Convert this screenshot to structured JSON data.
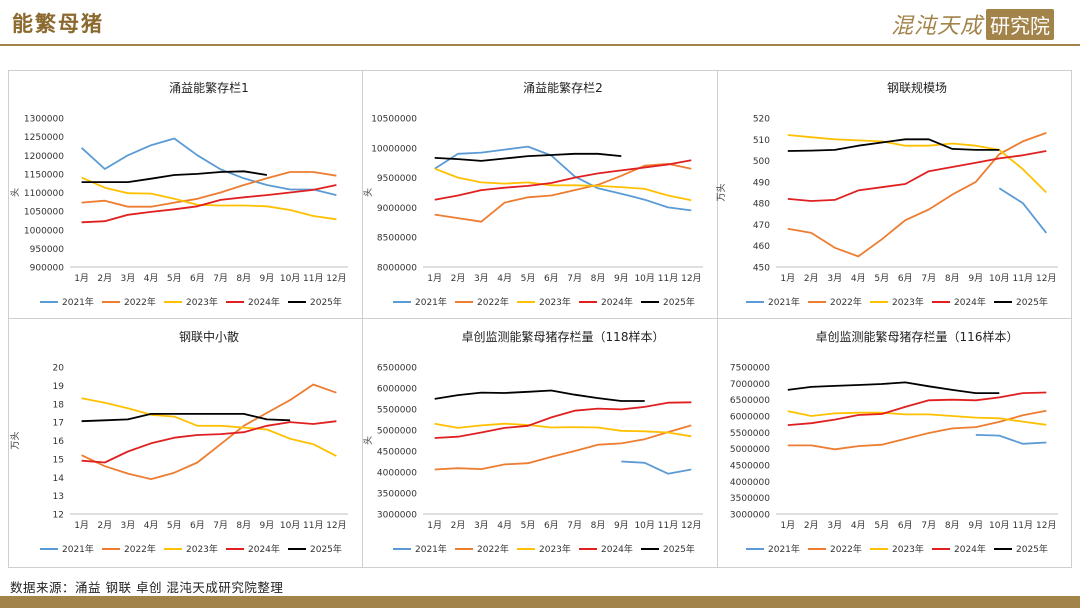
{
  "page": {
    "title": "能繁母猪",
    "brand_left": "混沌天成",
    "brand_right": "研究院",
    "source_note": "数据来源：涌益 钢联 卓创 混沌天成研究院整理"
  },
  "series_colors": {
    "2021年": "#5b9bd5",
    "2022年": "#ed7d31",
    "2023年": "#ffc000",
    "2024年": "#e02020",
    "2025年": "#000000"
  },
  "chart_data": [
    {
      "type": "line",
      "title": "涌益能繁存栏1",
      "ylabel": "头",
      "categories": [
        "1月",
        "2月",
        "3月",
        "4月",
        "5月",
        "6月",
        "7月",
        "8月",
        "9月",
        "10月",
        "11月",
        "12月"
      ],
      "ylim": [
        900000,
        1300000
      ],
      "yticks": [
        "900000",
        "950000",
        "1000000",
        "1050000",
        "1100000",
        "1150000",
        "1200000",
        "1250000",
        "1300000"
      ],
      "series": [
        {
          "name": "2021年",
          "values": [
            1220000,
            1163000,
            1200000,
            1227000,
            1245000,
            1200000,
            1162000,
            1138000,
            1120000,
            1108000,
            1108000,
            1093000
          ]
        },
        {
          "name": "2022年",
          "values": [
            1073000,
            1078000,
            1062000,
            1062000,
            1073000,
            1083000,
            1100000,
            1120000,
            1138000,
            1155000,
            1155000,
            1145000
          ]
        },
        {
          "name": "2023年",
          "values": [
            1140000,
            1113000,
            1098000,
            1097000,
            1083000,
            1067000,
            1065000,
            1065000,
            1063000,
            1053000,
            1037000,
            1028000
          ]
        },
        {
          "name": "2024年",
          "values": [
            1020000,
            1023000,
            1040000,
            1048000,
            1055000,
            1063000,
            1080000,
            1087000,
            1093000,
            1100000,
            1107000,
            1120000
          ]
        },
        {
          "name": "2025年",
          "values": [
            1128000,
            1128000,
            1128000,
            1137000,
            1147000,
            1150000,
            1155000,
            1157000,
            1147000,
            null,
            null,
            null
          ]
        }
      ]
    },
    {
      "type": "line",
      "title": "涌益能繁存栏2",
      "ylabel": "头",
      "categories": [
        "1月",
        "2月",
        "3月",
        "4月",
        "5月",
        "6月",
        "7月",
        "8月",
        "9月",
        "10月",
        "11月",
        "12月"
      ],
      "ylim": [
        8000000,
        10500000
      ],
      "yticks": [
        "8000000",
        "8500000",
        "9000000",
        "9500000",
        "10000000",
        "10500000"
      ],
      "series": [
        {
          "name": "2021年",
          "values": [
            9650000,
            9900000,
            9920000,
            9970000,
            10020000,
            9870000,
            9520000,
            9320000,
            9230000,
            9130000,
            9000000,
            8950000
          ]
        },
        {
          "name": "2022年",
          "values": [
            8880000,
            8820000,
            8760000,
            9080000,
            9170000,
            9200000,
            9290000,
            9380000,
            9530000,
            9700000,
            9730000,
            9650000
          ]
        },
        {
          "name": "2023年",
          "values": [
            9650000,
            9500000,
            9420000,
            9400000,
            9420000,
            9370000,
            9370000,
            9360000,
            9340000,
            9310000,
            9200000,
            9120000
          ]
        },
        {
          "name": "2024年",
          "values": [
            9130000,
            9200000,
            9290000,
            9330000,
            9360000,
            9410000,
            9500000,
            9570000,
            9620000,
            9670000,
            9720000,
            9790000
          ]
        },
        {
          "name": "2025年",
          "values": [
            9830000,
            9810000,
            9780000,
            9820000,
            9860000,
            9880000,
            9900000,
            9900000,
            9860000,
            null,
            null,
            null
          ]
        }
      ]
    },
    {
      "type": "line",
      "title": "钢联规模场",
      "ylabel": "万头",
      "categories": [
        "1月",
        "2月",
        "3月",
        "4月",
        "5月",
        "6月",
        "7月",
        "8月",
        "9月",
        "10月",
        "11月",
        "12月"
      ],
      "ylim": [
        450,
        520
      ],
      "yticks": [
        "450",
        "460",
        "470",
        "480",
        "490",
        "500",
        "510",
        "520"
      ],
      "series": [
        {
          "name": "2021年",
          "values": [
            null,
            null,
            null,
            null,
            null,
            null,
            null,
            null,
            null,
            487,
            480,
            466
          ]
        },
        {
          "name": "2022年",
          "values": [
            468,
            466,
            459,
            455,
            463,
            472,
            477,
            484,
            490,
            503,
            509,
            513
          ]
        },
        {
          "name": "2023年",
          "values": [
            512,
            511,
            510,
            509.5,
            509,
            507,
            507,
            508,
            507,
            505,
            496,
            485
          ]
        },
        {
          "name": "2024年",
          "values": [
            482,
            481,
            481.5,
            486,
            487.5,
            489,
            495,
            497,
            499,
            501,
            502.5,
            504.5
          ]
        },
        {
          "name": "2025年",
          "values": [
            504.5,
            504.7,
            505,
            507,
            508.5,
            510,
            510,
            505.5,
            505,
            505,
            null,
            null
          ]
        }
      ]
    },
    {
      "type": "line",
      "title": "钢联中小散",
      "ylabel": "万头",
      "categories": [
        "1月",
        "2月",
        "3月",
        "4月",
        "5月",
        "6月",
        "7月",
        "8月",
        "9月",
        "10月",
        "11月",
        "12月"
      ],
      "ylim": [
        12,
        20
      ],
      "yticks": [
        "12",
        "13",
        "14",
        "15",
        "16",
        "17",
        "18",
        "19",
        "20"
      ],
      "series": [
        {
          "name": "2021年",
          "values": [
            null,
            null,
            null,
            null,
            null,
            null,
            null,
            null,
            null,
            null,
            null,
            null
          ]
        },
        {
          "name": "2022年",
          "values": [
            15.2,
            14.6,
            14.2,
            13.9,
            14.25,
            14.8,
            15.8,
            16.8,
            17.5,
            18.2,
            19.05,
            18.6
          ]
        },
        {
          "name": "2023年",
          "values": [
            18.3,
            18.05,
            17.75,
            17.4,
            17.3,
            16.8,
            16.8,
            16.7,
            16.6,
            16.1,
            15.8,
            15.15
          ]
        },
        {
          "name": "2024年",
          "values": [
            14.9,
            14.8,
            15.4,
            15.85,
            16.15,
            16.3,
            16.35,
            16.45,
            16.8,
            17.0,
            16.9,
            17.05
          ]
        },
        {
          "name": "2025年",
          "values": [
            17.05,
            17.1,
            17.15,
            17.45,
            17.45,
            17.45,
            17.45,
            17.45,
            17.15,
            17.1,
            null,
            null
          ]
        }
      ]
    },
    {
      "type": "line",
      "title": "卓创监测能繁母猪存栏量（118样本）",
      "ylabel": "头",
      "categories": [
        "1月",
        "2月",
        "3月",
        "4月",
        "5月",
        "6月",
        "7月",
        "8月",
        "9月",
        "10月",
        "11月",
        "12月"
      ],
      "ylim": [
        3000000,
        6500000
      ],
      "yticks": [
        "3000000",
        "3500000",
        "4000000",
        "4500000",
        "5000000",
        "5500000",
        "6000000",
        "6500000"
      ],
      "series": [
        {
          "name": "2021年",
          "values": [
            null,
            null,
            null,
            null,
            null,
            null,
            null,
            null,
            4250000,
            4220000,
            3960000,
            4060000
          ]
        },
        {
          "name": "2022年",
          "values": [
            4060000,
            4090000,
            4070000,
            4180000,
            4210000,
            4360000,
            4500000,
            4650000,
            4680000,
            4780000,
            4950000,
            5110000
          ]
        },
        {
          "name": "2023年",
          "values": [
            5150000,
            5050000,
            5110000,
            5150000,
            5120000,
            5060000,
            5070000,
            5060000,
            4980000,
            4970000,
            4940000,
            4850000
          ]
        },
        {
          "name": "2024年",
          "values": [
            4810000,
            4840000,
            4940000,
            5050000,
            5100000,
            5300000,
            5460000,
            5510000,
            5490000,
            5550000,
            5650000,
            5660000
          ]
        },
        {
          "name": "2025年",
          "values": [
            5740000,
            5830000,
            5890000,
            5880000,
            5910000,
            5940000,
            5840000,
            5760000,
            5690000,
            5690000,
            null,
            null
          ]
        }
      ]
    },
    {
      "type": "line",
      "title": "卓创监测能繁母猪存栏量（116样本）",
      "ylabel": "",
      "categories": [
        "1月",
        "2月",
        "3月",
        "4月",
        "5月",
        "6月",
        "7月",
        "8月",
        "9月",
        "10月",
        "11月",
        "12月"
      ],
      "ylim": [
        3000000,
        7500000
      ],
      "yticks": [
        "3000000",
        "3500000",
        "4000000",
        "4500000",
        "5000000",
        "5500000",
        "6000000",
        "6500000",
        "7000000",
        "7500000"
      ],
      "series": [
        {
          "name": "2021年",
          "values": [
            null,
            null,
            null,
            null,
            null,
            null,
            null,
            null,
            5420000,
            5400000,
            5150000,
            5190000
          ]
        },
        {
          "name": "2022年",
          "values": [
            5100000,
            5100000,
            4980000,
            5080000,
            5120000,
            5300000,
            5480000,
            5620000,
            5660000,
            5820000,
            6020000,
            6160000
          ]
        },
        {
          "name": "2023年",
          "values": [
            6150000,
            6000000,
            6080000,
            6100000,
            6100000,
            6050000,
            6050000,
            6000000,
            5950000,
            5930000,
            5830000,
            5730000
          ]
        },
        {
          "name": "2024年",
          "values": [
            5720000,
            5780000,
            5890000,
            6030000,
            6060000,
            6280000,
            6480000,
            6500000,
            6480000,
            6570000,
            6700000,
            6720000
          ]
        },
        {
          "name": "2025年",
          "values": [
            6800000,
            6890000,
            6920000,
            6950000,
            6980000,
            7030000,
            6910000,
            6800000,
            6700000,
            6700000,
            null,
            null
          ]
        }
      ]
    }
  ]
}
